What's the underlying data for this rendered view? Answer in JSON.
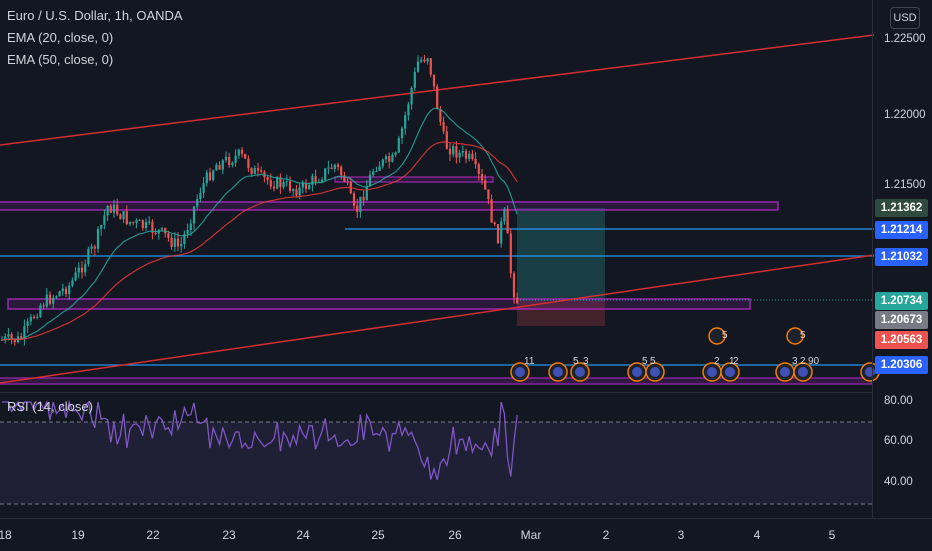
{
  "legend": {
    "symbol": "Euro / U.S. Dollar, 1h, OANDA",
    "ema20": "EMA (20, close, 0)",
    "ema50": "EMA (50, close, 0)"
  },
  "rsi_legend": "RSI (14, close)",
  "currency": "USD",
  "price_axis": {
    "ticks": [
      "1.22500",
      "1.22000",
      "1.21500"
    ],
    "labels": [
      {
        "text": "1.21362",
        "color": "#2f4a3f",
        "fg": "#ffffff"
      },
      {
        "text": "1.21214",
        "color": "#2962ff",
        "fg": "#ffffff"
      },
      {
        "text": "1.21032",
        "color": "#2962ff",
        "fg": "#ffffff"
      },
      {
        "text": "1.20734",
        "color": "#26a69a",
        "fg": "#ffffff"
      },
      {
        "text": "1.20673",
        "color": "#787b86",
        "fg": "#ffffff"
      },
      {
        "text": "1.20563",
        "color": "#ef5350",
        "fg": "#ffffff"
      },
      {
        "text": "1.20306",
        "color": "#2962ff",
        "fg": "#ffffff"
      }
    ]
  },
  "rsi_axis": {
    "ticks": [
      "80.00",
      "60.00",
      "40.00"
    ]
  },
  "time_axis": {
    "ticks": [
      "18",
      "19",
      "22",
      "23",
      "24",
      "25",
      "26",
      "Mar",
      "2",
      "3",
      "4",
      "5"
    ]
  },
  "event_counts": [
    "11",
    "5",
    "3",
    "5",
    "5",
    "2",
    "1",
    "2",
    "5",
    "3",
    "2",
    "90"
  ],
  "colors": {
    "background": "#131722",
    "up": "#26a69a",
    "down": "#ef5350",
    "ema20": "#26a69a",
    "ema50": "#e53935",
    "trendline": "#d32f2f",
    "zone": "#9c27b0",
    "hline": "#2196f3",
    "rsi": "#7e57c2"
  }
}
